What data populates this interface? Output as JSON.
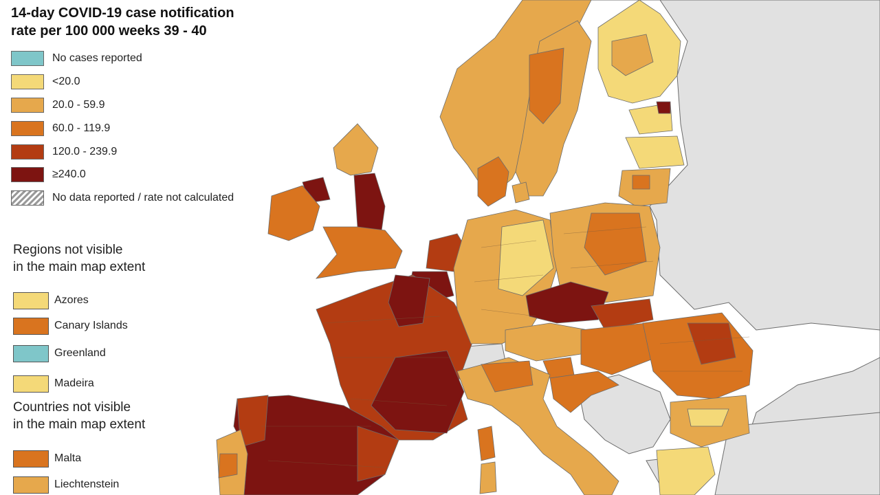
{
  "title": {
    "line1": "14-day COVID-19 case notification",
    "line2": "rate per 100 000 weeks 39 - 40"
  },
  "legend": {
    "classes": [
      {
        "label": "No cases reported",
        "color": "#7fc6c9"
      },
      {
        "label": "<20.0",
        "color": "#f4d978"
      },
      {
        "label": "20.0 - 59.9",
        "color": "#e6a84c"
      },
      {
        "label": "60.0 - 119.9",
        "color": "#d9741f"
      },
      {
        "label": "120.0 - 239.9",
        "color": "#b33c12"
      },
      {
        "label": "≥240.0",
        "color": "#7d1411"
      },
      {
        "label": "No data reported / rate not calculated",
        "pattern": "hatched"
      }
    ]
  },
  "regions_not_visible": {
    "heading_line1": "Regions not visible",
    "heading_line2": "in the main map extent",
    "items": [
      {
        "label": "Azores",
        "color": "#f4d978"
      },
      {
        "label": "Canary Islands",
        "color": "#d9741f"
      },
      {
        "label": "Greenland",
        "color": "#7fc6c9"
      },
      {
        "label": "Madeira",
        "color": "#f4d978"
      }
    ]
  },
  "countries_not_visible": {
    "heading_line1": "Countries not visible",
    "heading_line2": "in the main map extent",
    "items": [
      {
        "label": "Malta",
        "color": "#d9741f"
      },
      {
        "label": "Liechtenstein",
        "color": "#e6a84c"
      }
    ]
  },
  "map_colors": {
    "sea": "#ffffff",
    "non_eu": "#e1e1e1",
    "border": "#6b6b6b"
  }
}
